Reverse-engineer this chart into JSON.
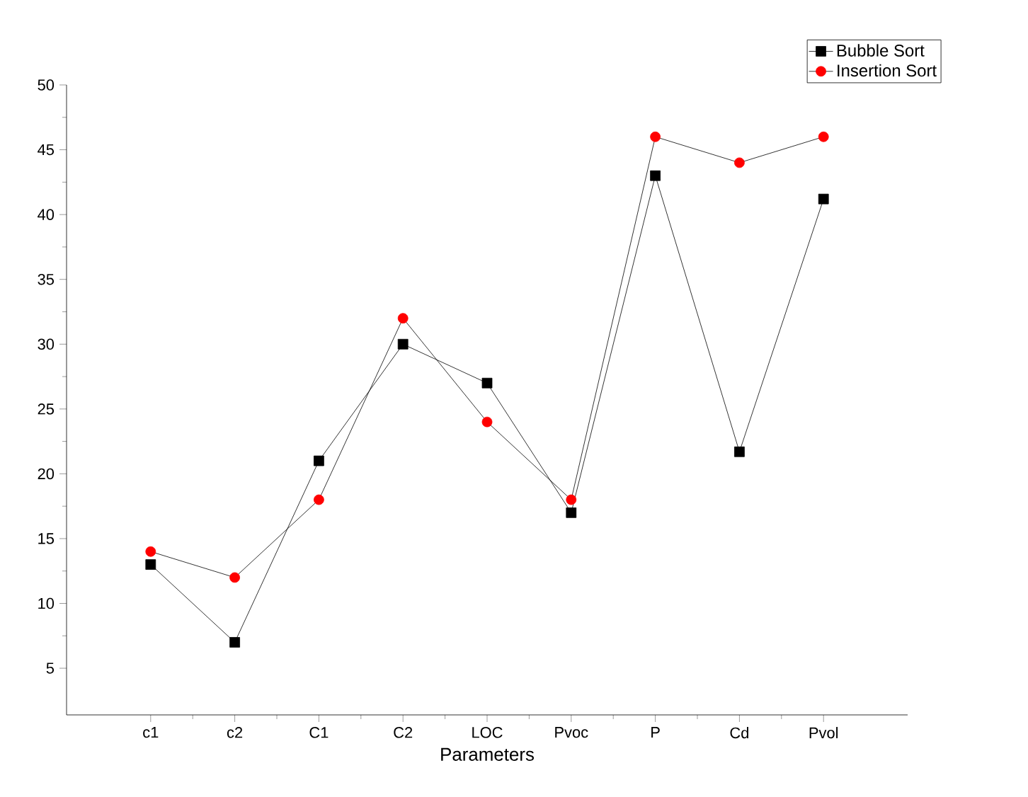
{
  "chart_data": {
    "type": "line",
    "xlabel": "Parameters",
    "categories": [
      "c1",
      "c2",
      "C1",
      "C2",
      "LOC",
      "Pvoc",
      "P",
      "Cd",
      "Pvol"
    ],
    "series": [
      {
        "name": "Bubble Sort",
        "color": "#000000",
        "marker": "square",
        "values": [
          13,
          7,
          21,
          30,
          27,
          17,
          43,
          21.7,
          41.2
        ]
      },
      {
        "name": "Insertion Sort",
        "color": "#ff0000",
        "marker": "circle",
        "values": [
          14,
          12,
          18,
          32,
          24,
          18,
          46,
          44,
          46
        ]
      }
    ],
    "ylim": [
      1.4,
      50
    ],
    "yticks": [
      5,
      10,
      15,
      20,
      25,
      30,
      35,
      40,
      45,
      50
    ],
    "grid": false,
    "legend": "top right",
    "line_style": "solid"
  }
}
